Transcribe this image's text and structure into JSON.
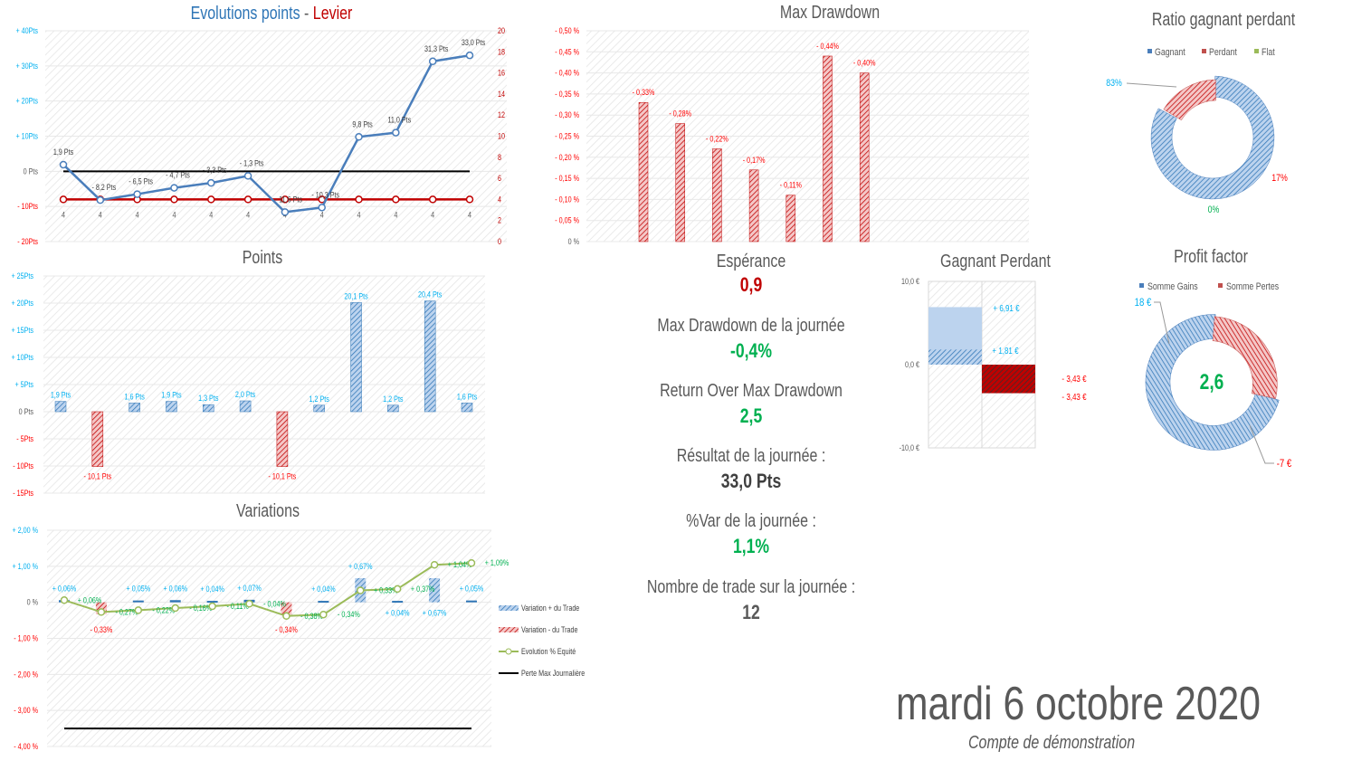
{
  "colors": {
    "blue": "#4a7ebb",
    "cyan": "#00b0f0",
    "red": "#c00000",
    "lightred": "#ff0000",
    "green": "#00b050",
    "olive": "#9bbb59",
    "grey": "#595959"
  },
  "stats": {
    "esperance_label": "Espérance",
    "esperance_value": "0,9",
    "mdd_label": "Max Drawdown de la journée",
    "mdd_value": "-0,4%",
    "romad_label": "Return Over Max Drawdown",
    "romad_value": "2,5",
    "result_label": "Résultat de la journée :",
    "result_value": "33,0 Pts",
    "var_label": "%Var de la journée :",
    "var_value": "1,1%",
    "trades_label": "Nombre de trade sur la journée :",
    "trades_value": "12"
  },
  "footer": {
    "date": "mardi 6 octobre 2020",
    "account": "Compte de démonstration"
  },
  "chart_data": [
    {
      "id": "evolution",
      "type": "line",
      "title_part1": "Evolutions points",
      "title_sep": " - ",
      "title_part2": "Levier",
      "y_ticks": [
        "+ 40Pts",
        "+ 30Pts",
        "+ 20Pts",
        "+ 10Pts",
        "0 Pts",
        "- 10Pts",
        "- 20Pts"
      ],
      "ylim": [
        -20,
        40
      ],
      "y2_ticks": [
        "20",
        "18",
        "16",
        "14",
        "12",
        "10",
        "8",
        "6",
        "4",
        "2",
        "0"
      ],
      "y2lim": [
        0,
        20
      ],
      "series": [
        {
          "values": [
            1.9,
            -8.2,
            -6.5,
            -4.7,
            -3.3,
            -1.3,
            -11.6,
            -10.3,
            9.8,
            11.0,
            31.3,
            33.0
          ],
          "labels": [
            "1,9 Pts",
            "- 8,2 Pts",
            "- 6,5 Pts",
            "- 4,7 Pts",
            "- 3,3 Pts",
            "- 1,3 Pts",
            "- 11,6 Pts",
            "- 10,3 Pts",
            "9,8 Pts",
            "11,0 Pts",
            "31,3 Pts",
            "33,0 Pts"
          ]
        },
        {
          "axis": "right",
          "values": [
            4,
            4,
            4,
            4,
            4,
            4,
            4,
            4,
            4,
            4,
            4,
            4
          ],
          "labels": [
            "4",
            "4",
            "4",
            "4",
            "4",
            "4",
            "4",
            "4",
            "4",
            "4",
            "4",
            "4"
          ]
        }
      ]
    },
    {
      "id": "points",
      "type": "bar",
      "title": "Points",
      "y_ticks": [
        "+ 25Pts",
        "+ 20Pts",
        "+ 15Pts",
        "+ 10Pts",
        "+ 5Pts",
        "0 Pts",
        "- 5Pts",
        "- 10Pts",
        "- 15Pts"
      ],
      "ylim": [
        -15,
        25
      ],
      "values": [
        1.9,
        -10.1,
        1.6,
        1.9,
        1.3,
        2.0,
        -10.1,
        1.2,
        20.1,
        1.2,
        20.4,
        1.6
      ],
      "labels": [
        "1,9 Pts",
        "- 10,1 Pts",
        "1,6 Pts",
        "1,9 Pts",
        "1,3 Pts",
        "2,0 Pts",
        "- 10,1 Pts",
        "1,2 Pts",
        "20,1 Pts",
        "1,2 Pts",
        "20,4 Pts",
        "1,6 Pts"
      ]
    },
    {
      "id": "variations",
      "type": "bar+line",
      "title": "Variations",
      "y_ticks": [
        "+ 2,00 %",
        "+ 1,00 %",
        "0 %",
        "- 1,00 %",
        "- 2,00 %",
        "- 3,00 %",
        "- 4,00 %"
      ],
      "ylim": [
        -4,
        2
      ],
      "bars": [
        0.06,
        -0.33,
        0.05,
        0.06,
        0.04,
        0.07,
        -0.34,
        0.04,
        0.67,
        0.04,
        0.67,
        0.05
      ],
      "bar_labels": [
        "+ 0,06%",
        "- 0,33%",
        "+ 0,05%",
        "+ 0,06%",
        "+ 0,04%",
        "+ 0,07%",
        "- 0,34%",
        "+ 0,04%",
        "+ 0,67%",
        "+ 0,04%",
        "+ 0,67%",
        "+ 0,05%"
      ],
      "equity": [
        0.06,
        -0.27,
        -0.22,
        -0.16,
        -0.11,
        -0.04,
        -0.38,
        -0.34,
        0.33,
        0.37,
        1.04,
        1.09
      ],
      "equity_labels": [
        "+ 0,06%",
        "- 0,27%",
        "- 0,22%",
        "- 0,16%",
        "- 0,11%",
        "- 0,04%",
        "- 0,38%",
        "- 0,34%",
        "+ 0,33%",
        "+ 0,37%",
        "+ 1,04%",
        "+ 1,09%"
      ],
      "max_loss": -3.5,
      "legend": [
        "Variation + du Trade",
        "Variation - du Trade",
        "Evolution % Equité",
        "Perte Max Journalière"
      ],
      "legend_position": "right"
    },
    {
      "id": "maxdd",
      "type": "bar",
      "title": "Max Drawdown",
      "y_ticks": [
        "- 0,50 %",
        "- 0,45 %",
        "- 0,40 %",
        "- 0,35 %",
        "- 0,30 %",
        "- 0,25 %",
        "- 0,20 %",
        "- 0,15 %",
        "- 0,10 %",
        "- 0,05 %",
        "0 %"
      ],
      "ylim": [
        0,
        0.5
      ],
      "values": [
        0.33,
        0.28,
        0.22,
        0.17,
        0.11,
        0.44,
        0.4
      ],
      "labels": [
        "- 0,33%",
        "- 0,28%",
        "- 0,22%",
        "- 0,17%",
        "- 0,11%",
        "- 0,44%",
        "- 0,40%"
      ]
    },
    {
      "id": "ratio",
      "type": "pie",
      "title": "Ratio gagnant perdant",
      "legend": [
        "Gagnant",
        "Perdant",
        "Flat"
      ],
      "legend_position": "top",
      "values": [
        83,
        17,
        0
      ],
      "labels": [
        "83%",
        "17%",
        "0%"
      ]
    },
    {
      "id": "gagnant_perdant",
      "type": "bar",
      "title": "Gagnant Perdant",
      "y_ticks": [
        "10,0 €",
        "0,0 €",
        "-10,0 €"
      ],
      "ylim": [
        -10,
        10
      ],
      "gain_total": 6.91,
      "gain_avg": 1.81,
      "loss_total": -3.43,
      "loss_avg": -3.43,
      "labels": [
        "+ 6,91 €",
        "+ 1,81 €",
        "- 3,43 €",
        "- 3,43 €"
      ]
    },
    {
      "id": "profit_factor",
      "type": "pie",
      "title": "Profit factor",
      "legend": [
        "Somme Gains",
        "Somme Pertes"
      ],
      "legend_position": "top",
      "values": [
        18,
        7
      ],
      "labels": [
        "18 €",
        "-7 €"
      ],
      "center": "2,6"
    }
  ]
}
